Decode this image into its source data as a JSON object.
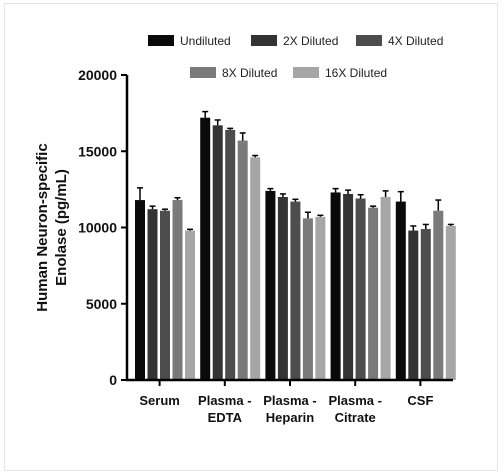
{
  "chart_data": {
    "type": "bar",
    "title": "",
    "ylabel_lines": [
      "Human Neuron-specific",
      "Enolase (pg/mL)"
    ],
    "xlabel": "",
    "ylim": [
      0,
      20000
    ],
    "yticks": [
      "0",
      "5000",
      "10000",
      "15000",
      "20000"
    ],
    "ytick_values": [
      0,
      5000,
      10000,
      15000,
      20000
    ],
    "categories": [
      [
        "Serum"
      ],
      [
        "Plasma -",
        "EDTA"
      ],
      [
        "Plasma -",
        "Heparin"
      ],
      [
        "Plasma -",
        "Citrate"
      ],
      [
        "CSF"
      ]
    ],
    "legend_position": "top",
    "series": [
      {
        "name": "Undiluted",
        "color": "#0a0a0a",
        "values": [
          11800,
          17200,
          12400,
          12300,
          11700
        ],
        "errors": [
          800,
          400,
          150,
          250,
          650
        ]
      },
      {
        "name": "2X Diluted",
        "color": "#333333",
        "values": [
          11200,
          16700,
          12000,
          12200,
          9800
        ],
        "errors": [
          200,
          350,
          200,
          250,
          300
        ]
      },
      {
        "name": "4X Diluted",
        "color": "#4d4d4d",
        "values": [
          11100,
          16400,
          11700,
          11900,
          9900
        ],
        "errors": [
          100,
          100,
          150,
          250,
          300
        ]
      },
      {
        "name": "8X Diluted",
        "color": "#7a7a7a",
        "values": [
          11800,
          15700,
          10600,
          11300,
          11100
        ],
        "errors": [
          150,
          500,
          400,
          100,
          700
        ]
      },
      {
        "name": "16X Diluted",
        "color": "#a6a6a6",
        "values": [
          9800,
          14600,
          10700,
          12000,
          10100
        ],
        "errors": [
          80,
          120,
          100,
          400,
          100
        ]
      }
    ]
  }
}
